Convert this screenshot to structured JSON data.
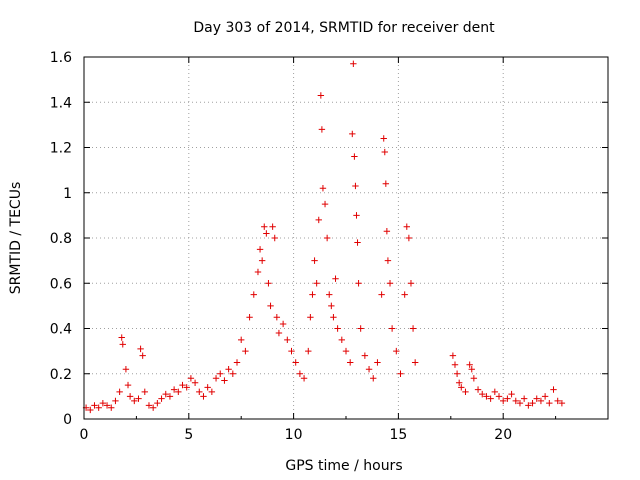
{
  "chart_data": {
    "type": "scatter",
    "title": "Day 303 of 2014, SRMTID for receiver dent",
    "xlabel": "GPS time / hours",
    "ylabel": "SRMTID / TECUs",
    "xlim": [
      0,
      25
    ],
    "ylim": [
      0,
      1.6
    ],
    "xticks": [
      0,
      5,
      10,
      15,
      20
    ],
    "xtick_labels": [
      "0",
      "5",
      "10",
      "15",
      "20"
    ],
    "yticks": [
      0,
      0.2,
      0.4,
      0.6,
      0.8,
      1,
      1.2,
      1.4,
      1.6
    ],
    "ytick_labels": [
      "0",
      "0.2",
      "0.4",
      "0.6",
      "0.8",
      "1",
      "1.2",
      "1.4",
      "1.6"
    ],
    "grid": true,
    "marker": "plus",
    "color": "#e00000",
    "series": [
      {
        "name": "SRMTID",
        "points": [
          [
            0.1,
            0.05
          ],
          [
            0.3,
            0.04
          ],
          [
            0.5,
            0.06
          ],
          [
            0.7,
            0.05
          ],
          [
            0.9,
            0.07
          ],
          [
            1.1,
            0.06
          ],
          [
            1.3,
            0.05
          ],
          [
            1.5,
            0.08
          ],
          [
            1.7,
            0.12
          ],
          [
            1.8,
            0.36
          ],
          [
            1.85,
            0.33
          ],
          [
            2.0,
            0.22
          ],
          [
            2.1,
            0.15
          ],
          [
            2.2,
            0.1
          ],
          [
            2.4,
            0.08
          ],
          [
            2.6,
            0.09
          ],
          [
            2.7,
            0.31
          ],
          [
            2.8,
            0.28
          ],
          [
            2.9,
            0.12
          ],
          [
            3.1,
            0.06
          ],
          [
            3.3,
            0.05
          ],
          [
            3.5,
            0.07
          ],
          [
            3.7,
            0.09
          ],
          [
            3.9,
            0.11
          ],
          [
            4.1,
            0.1
          ],
          [
            4.3,
            0.13
          ],
          [
            4.5,
            0.12
          ],
          [
            4.7,
            0.15
          ],
          [
            4.9,
            0.14
          ],
          [
            5.1,
            0.18
          ],
          [
            5.3,
            0.16
          ],
          [
            5.5,
            0.12
          ],
          [
            5.7,
            0.1
          ],
          [
            5.9,
            0.14
          ],
          [
            6.1,
            0.12
          ],
          [
            6.3,
            0.18
          ],
          [
            6.5,
            0.2
          ],
          [
            6.7,
            0.17
          ],
          [
            6.9,
            0.22
          ],
          [
            7.1,
            0.2
          ],
          [
            7.3,
            0.25
          ],
          [
            7.5,
            0.35
          ],
          [
            7.7,
            0.3
          ],
          [
            7.9,
            0.45
          ],
          [
            8.1,
            0.55
          ],
          [
            8.3,
            0.65
          ],
          [
            8.4,
            0.75
          ],
          [
            8.5,
            0.7
          ],
          [
            8.6,
            0.85
          ],
          [
            8.7,
            0.82
          ],
          [
            8.8,
            0.6
          ],
          [
            8.9,
            0.5
          ],
          [
            9.0,
            0.85
          ],
          [
            9.1,
            0.8
          ],
          [
            9.2,
            0.45
          ],
          [
            9.3,
            0.38
          ],
          [
            9.5,
            0.42
          ],
          [
            9.7,
            0.35
          ],
          [
            9.9,
            0.3
          ],
          [
            10.1,
            0.25
          ],
          [
            10.3,
            0.2
          ],
          [
            10.5,
            0.18
          ],
          [
            10.7,
            0.3
          ],
          [
            10.8,
            0.45
          ],
          [
            10.9,
            0.55
          ],
          [
            11.0,
            0.7
          ],
          [
            11.1,
            0.6
          ],
          [
            11.2,
            0.88
          ],
          [
            11.3,
            1.43
          ],
          [
            11.35,
            1.28
          ],
          [
            11.4,
            1.02
          ],
          [
            11.5,
            0.95
          ],
          [
            11.6,
            0.8
          ],
          [
            11.7,
            0.55
          ],
          [
            11.8,
            0.5
          ],
          [
            11.9,
            0.45
          ],
          [
            12.0,
            0.62
          ],
          [
            12.1,
            0.4
          ],
          [
            12.3,
            0.35
          ],
          [
            12.5,
            0.3
          ],
          [
            12.7,
            0.25
          ],
          [
            12.8,
            1.26
          ],
          [
            12.9,
            1.16
          ],
          [
            12.95,
            1.03
          ],
          [
            13.0,
            0.9
          ],
          [
            13.05,
            0.78
          ],
          [
            12.85,
            1.57
          ],
          [
            13.1,
            0.6
          ],
          [
            13.2,
            0.4
          ],
          [
            13.4,
            0.28
          ],
          [
            13.6,
            0.22
          ],
          [
            13.8,
            0.18
          ],
          [
            14.0,
            0.25
          ],
          [
            14.2,
            0.55
          ],
          [
            14.3,
            1.24
          ],
          [
            14.35,
            1.18
          ],
          [
            14.4,
            1.04
          ],
          [
            14.45,
            0.83
          ],
          [
            14.5,
            0.7
          ],
          [
            14.6,
            0.6
          ],
          [
            14.7,
            0.4
          ],
          [
            14.9,
            0.3
          ],
          [
            15.1,
            0.2
          ],
          [
            15.3,
            0.55
          ],
          [
            15.4,
            0.85
          ],
          [
            15.5,
            0.8
          ],
          [
            15.6,
            0.6
          ],
          [
            15.7,
            0.4
          ],
          [
            15.8,
            0.25
          ],
          [
            17.6,
            0.28
          ],
          [
            17.7,
            0.24
          ],
          [
            17.8,
            0.2
          ],
          [
            17.9,
            0.16
          ],
          [
            18.0,
            0.14
          ],
          [
            18.2,
            0.12
          ],
          [
            18.4,
            0.24
          ],
          [
            18.5,
            0.22
          ],
          [
            18.6,
            0.18
          ],
          [
            18.8,
            0.13
          ],
          [
            19.0,
            0.11
          ],
          [
            19.2,
            0.1
          ],
          [
            19.4,
            0.09
          ],
          [
            19.6,
            0.12
          ],
          [
            19.8,
            0.1
          ],
          [
            20.0,
            0.08
          ],
          [
            20.2,
            0.09
          ],
          [
            20.4,
            0.11
          ],
          [
            20.6,
            0.08
          ],
          [
            20.8,
            0.07
          ],
          [
            21.0,
            0.09
          ],
          [
            21.2,
            0.06
          ],
          [
            21.4,
            0.07
          ],
          [
            21.6,
            0.09
          ],
          [
            21.8,
            0.08
          ],
          [
            22.0,
            0.1
          ],
          [
            22.2,
            0.07
          ],
          [
            22.4,
            0.13
          ],
          [
            22.6,
            0.08
          ],
          [
            22.8,
            0.07
          ]
        ]
      }
    ]
  }
}
